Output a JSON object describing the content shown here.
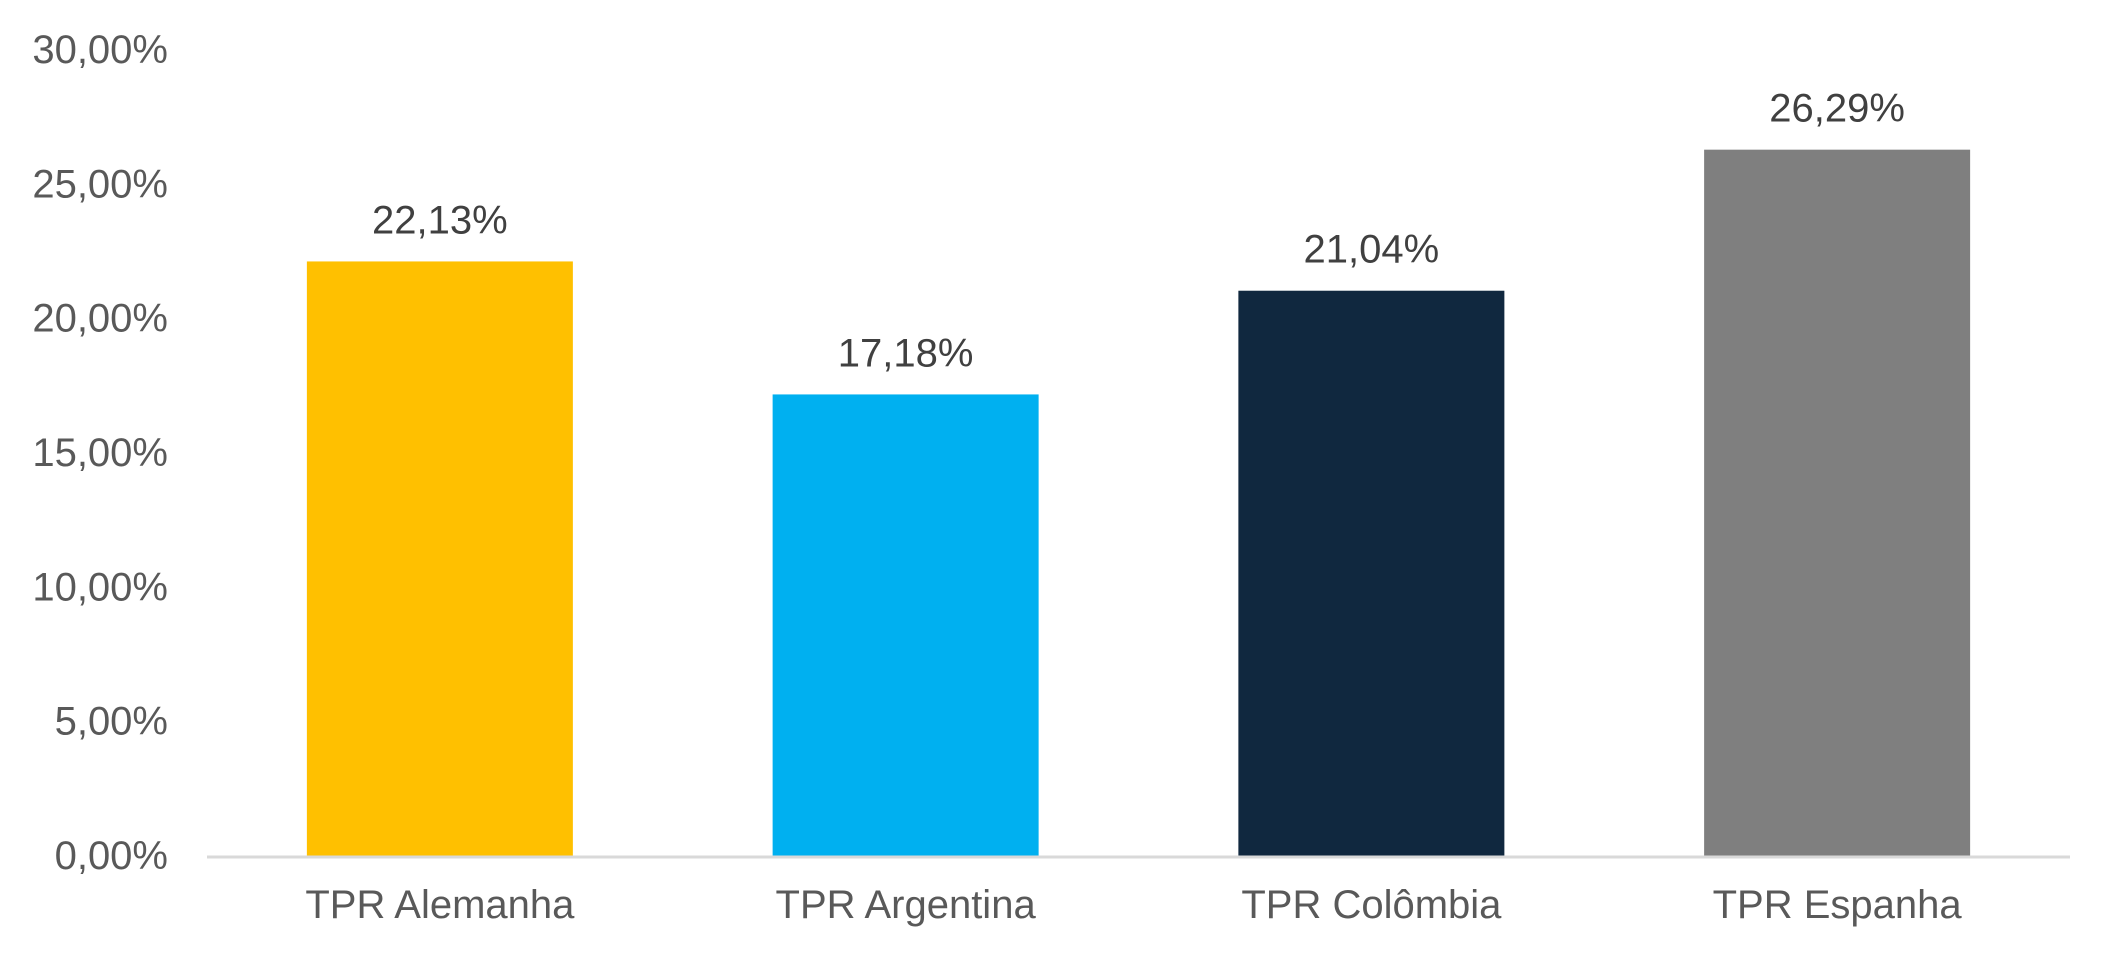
{
  "chart_data": {
    "type": "bar",
    "categories": [
      "TPR Alemanha",
      "TPR Argentina",
      "TPR Colômbia",
      "TPR Espanha"
    ],
    "values": [
      22.13,
      17.18,
      21.04,
      26.29
    ],
    "data_labels": [
      "22,13%",
      "17,18%",
      "21,04%",
      "26,29%"
    ],
    "colors": [
      "#FFC000",
      "#00B0F0",
      "#10283F",
      "#7F7F7F"
    ],
    "ylim": [
      0,
      30
    ],
    "yticks": [
      0,
      5,
      10,
      15,
      20,
      25,
      30
    ],
    "ytick_labels": [
      "0,00%",
      "5,00%",
      "10,00%",
      "15,00%",
      "20,00%",
      "25,00%",
      "30,00%"
    ],
    "title": "",
    "xlabel": "",
    "ylabel": "",
    "grid": false,
    "axis_color": "#D9D9D9"
  }
}
